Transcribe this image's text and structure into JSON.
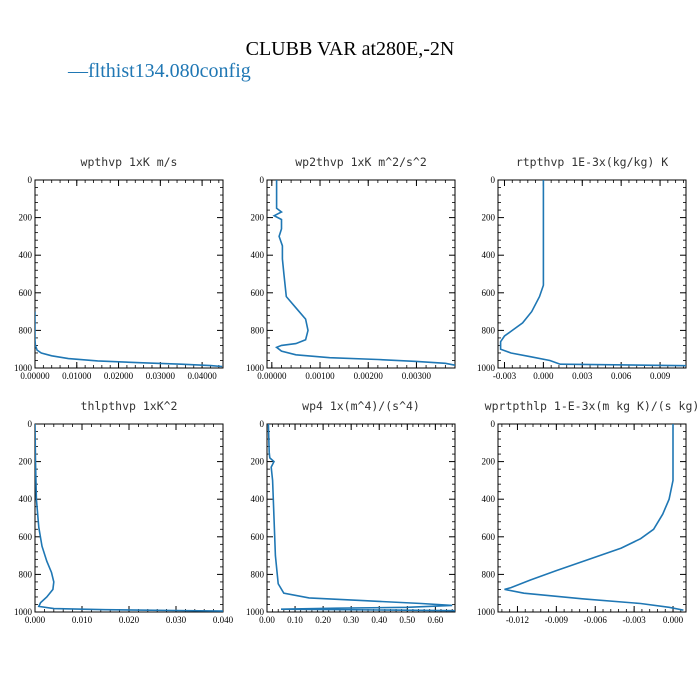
{
  "figure": {
    "title": "CLUBB VAR at280E,-2N",
    "legend_label": "flthist134.080config",
    "legend_symbol": "—",
    "line_color": "#1f77b4"
  },
  "chart_data": [
    {
      "type": "line",
      "title": "wpthvp   1xK m/s",
      "xlim": [
        0,
        0.045
      ],
      "ylim": [
        1000,
        0
      ],
      "x_ticks": [
        "0.00000",
        "0.01000",
        "0.02000",
        "0.03000",
        "0.04000"
      ],
      "x_tick_values": [
        0,
        0.01,
        0.02,
        0.03,
        0.04
      ],
      "y_ticks": [
        "0",
        "200",
        "400",
        "600",
        "800",
        "1000"
      ],
      "y_tick_values": [
        0,
        200,
        400,
        600,
        800,
        1000
      ],
      "series": [
        {
          "x": [
            0.0,
            0.0,
            0.0001,
            0.0005,
            0.0015,
            0.004,
            0.008,
            0.015,
            0.025,
            0.035,
            0.042,
            0.0448
          ],
          "y": [
            700,
            850,
            880,
            905,
            920,
            935,
            950,
            962,
            972,
            980,
            987,
            992
          ]
        }
      ]
    },
    {
      "type": "line",
      "title": "wp2thvp   1xK m^2/s^2",
      "xlim": [
        -0.0001,
        0.0038
      ],
      "ylim": [
        1000,
        0
      ],
      "x_ticks": [
        "0.00000",
        "0.00100",
        "0.00200",
        "0.00300"
      ],
      "x_tick_values": [
        0,
        0.001,
        0.002,
        0.003
      ],
      "y_ticks": [
        "0",
        "200",
        "400",
        "600",
        "800",
        "1000"
      ],
      "y_tick_values": [
        0,
        200,
        400,
        600,
        800,
        1000
      ],
      "series": [
        {
          "x": [
            0.0001,
            0.0001,
            0.0002,
            5e-05,
            0.0002,
            0.0002,
            0.00015,
            0.00022,
            0.00022,
            0.00025,
            0.0003,
            0.0005,
            0.0007,
            0.00075,
            0.0007,
            0.0005,
            0.0002,
            0.0001,
            0.0002,
            0.0005,
            0.0012,
            0.0022,
            0.003,
            0.0036,
            0.0038
          ],
          "y": [
            0,
            150,
            170,
            190,
            210,
            260,
            300,
            350,
            420,
            500,
            620,
            680,
            740,
            800,
            850,
            870,
            880,
            890,
            910,
            930,
            945,
            955,
            965,
            975,
            985
          ]
        }
      ]
    },
    {
      "type": "line",
      "title": "rtpthvp   1E-3x(kg/kg) K",
      "xlim": [
        -0.0035,
        0.011
      ],
      "ylim": [
        1000,
        0
      ],
      "x_ticks": [
        "-0.003",
        "0.000",
        "0.003",
        "0.006",
        "0.009"
      ],
      "x_tick_values": [
        -0.003,
        0,
        0.003,
        0.006,
        0.009
      ],
      "y_ticks": [
        "0",
        "200",
        "400",
        "600",
        "800",
        "1000"
      ],
      "y_tick_values": [
        0,
        200,
        400,
        600,
        800,
        1000
      ],
      "series": [
        {
          "x": [
            0.0,
            0.0,
            0.0,
            0.0,
            -0.0003,
            -0.0009,
            -0.0016,
            -0.0024,
            -0.003,
            -0.0033,
            -0.0033,
            -0.0025,
            -0.001,
            0.0005,
            0.0013,
            0.011
          ],
          "y": [
            0,
            200,
            400,
            560,
            620,
            700,
            760,
            800,
            830,
            860,
            900,
            920,
            940,
            960,
            980,
            988
          ]
        }
      ]
    },
    {
      "type": "line",
      "title": "thlpthvp   1xK^2",
      "xlim": [
        0,
        0.04
      ],
      "ylim": [
        1000,
        0
      ],
      "x_ticks": [
        "0.000",
        "0.010",
        "0.020",
        "0.030",
        "0.040"
      ],
      "x_tick_values": [
        0,
        0.01,
        0.02,
        0.03,
        0.04
      ],
      "y_ticks": [
        "0",
        "200",
        "400",
        "600",
        "800",
        "1000"
      ],
      "y_tick_values": [
        0,
        200,
        400,
        600,
        800,
        1000
      ],
      "series": [
        {
          "x": [
            0.0,
            0.0001,
            0.0003,
            0.0008,
            0.0015,
            0.0025,
            0.0035,
            0.004,
            0.0038,
            0.0025,
            0.0012,
            0.0008,
            0.004,
            0.015,
            0.03,
            0.04
          ],
          "y": [
            0,
            200,
            400,
            550,
            650,
            730,
            790,
            840,
            880,
            920,
            950,
            970,
            982,
            988,
            992,
            995
          ]
        }
      ]
    },
    {
      "type": "line",
      "title": "wp4   1x(m^4)/(s^4)",
      "xlim": [
        0,
        0.67
      ],
      "ylim": [
        1000,
        0
      ],
      "x_ticks": [
        "0.00",
        "0.10",
        "0.20",
        "0.30",
        "0.40",
        "0.50",
        "0.60"
      ],
      "x_tick_values": [
        0,
        0.1,
        0.2,
        0.3,
        0.4,
        0.5,
        0.6
      ],
      "y_ticks": [
        "0",
        "200",
        "400",
        "600",
        "800",
        "1000"
      ],
      "y_tick_values": [
        0,
        200,
        400,
        600,
        800,
        1000
      ],
      "series": [
        {
          "x": [
            0.005,
            0.008,
            0.01,
            0.025,
            0.015,
            0.02,
            0.025,
            0.03,
            0.04,
            0.06,
            0.15,
            0.35,
            0.55,
            0.66,
            0.5,
            0.25,
            0.05,
            0.45,
            0.67
          ],
          "y": [
            0,
            150,
            180,
            200,
            230,
            300,
            500,
            700,
            850,
            900,
            925,
            940,
            955,
            965,
            975,
            980,
            985,
            990,
            993
          ]
        }
      ]
    },
    {
      "type": "line",
      "title": "wprtpthlp   1-E-3x(m kg K)/(s kg)",
      "xlim": [
        -0.0135,
        0.001
      ],
      "ylim": [
        1000,
        0
      ],
      "x_ticks": [
        "-0.012",
        "-0.009",
        "-0.006",
        "-0.003",
        "0.000"
      ],
      "x_tick_values": [
        -0.012,
        -0.009,
        -0.006,
        -0.003,
        0
      ],
      "y_ticks": [
        "0",
        "200",
        "400",
        "600",
        "800",
        "1000"
      ],
      "y_tick_values": [
        0,
        200,
        400,
        600,
        800,
        1000
      ],
      "series": [
        {
          "x": [
            0.0,
            0.0,
            -0.0003,
            -0.0008,
            -0.0015,
            -0.0025,
            -0.004,
            -0.0065,
            -0.009,
            -0.011,
            -0.0125,
            -0.013,
            -0.0115,
            -0.007,
            -0.0025,
            -0.0003,
            0.0008
          ],
          "y": [
            0,
            300,
            400,
            480,
            560,
            610,
            660,
            720,
            780,
            830,
            870,
            880,
            900,
            930,
            955,
            975,
            990
          ]
        }
      ]
    }
  ]
}
